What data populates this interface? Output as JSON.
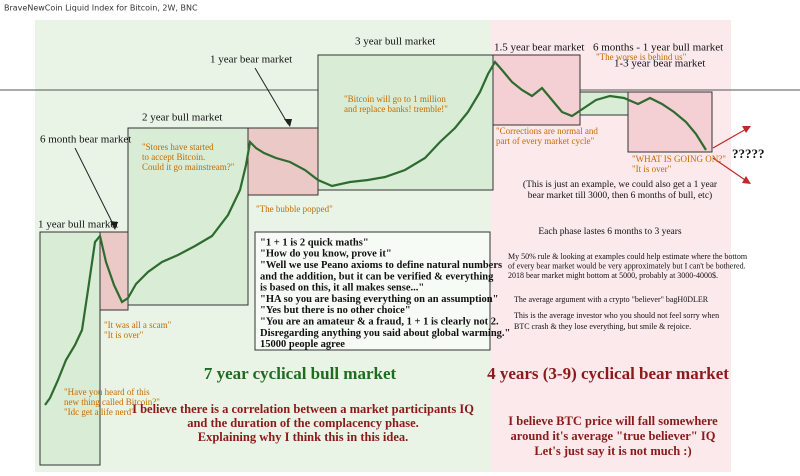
{
  "header": {
    "title": "BraveNewCoin Liquid Index for Bitcoin, 2W, BNC"
  },
  "phases": [
    "1 year bull market",
    "6 month bear market",
    "2 year bull market",
    "1 year bear market",
    "3 year bull market",
    "1.5 year bear market",
    "6 months - 1 year bull market",
    "1-3 year bear market"
  ],
  "quotes": [
    [
      "\"Have you heard of this",
      "new thing called Bitcoin?\"",
      "\"Idc get a life nerd\""
    ],
    [
      "\"It was all a scam\"",
      "\"It is over\""
    ],
    [
      "\"Stores have started",
      "to accept Bitcoin.",
      "Could it go mainstream?\""
    ],
    [
      "\"The bubble popped\""
    ],
    [
      "\"Bitcoin will go to 1 million",
      "and replace banks! tremble!\""
    ],
    [
      "\"Corrections are normal and",
      "part of every market cycle\""
    ],
    [
      "\"The worse is behind us\""
    ],
    [
      "\"WHAT IS GOING ON?\"",
      "\"It is over\""
    ]
  ],
  "outlook": "?????",
  "dialogue": [
    "\"1 + 1 is 2 quick maths\"",
    "\"How do you know, prove it\"",
    "\"Well we use Peano axioms to define natural numbers",
    "and the addition, but it can be verified & everything",
    "is based on this, it all makes sense...\"",
    "\"HA so you are basing everything on an assumption\"",
    "\"Yes but there is no other choice\"",
    "\"You are an amateur & a fraud, 1 + 1 is clearly not 2.",
    "Disregarding anything you said about global warming.\"",
    "15000 people agree"
  ],
  "notes": {
    "example": [
      "(This is just an example, we could also get a 1 year",
      "bear market till 3000, then 6 months of bull, etc)"
    ],
    "phase_length": "Each phase lastes 6 months to 3 years",
    "estimate": [
      "My 50% rule & looking at examples could help estimate where the bottom",
      "of every bear market would be very approximately but I can't be bothered.",
      "2018 bear market might bottom at 5000, probably at 3000-4000$."
    ],
    "argument": "The average argument with a crypto \"believer\" bagH0DLER",
    "conclusion": [
      "This is the average investor who you should not feel sorry when",
      "BTC crash & they lose everything, but smile & rejoice."
    ]
  },
  "bull_title": "7 year cyclical bull market",
  "bear_title": "4 years (3-9) cyclical bear market",
  "thesis": [
    "I believe there is a correlation between a market participants IQ",
    "and the duration of the complacency phase.",
    "Explaining why I think this in this idea."
  ],
  "prediction": [
    "I believe BTC price will fall somewhere",
    "around it's average \"true believer\" IQ",
    "Let's just say it is not much :)"
  ]
}
